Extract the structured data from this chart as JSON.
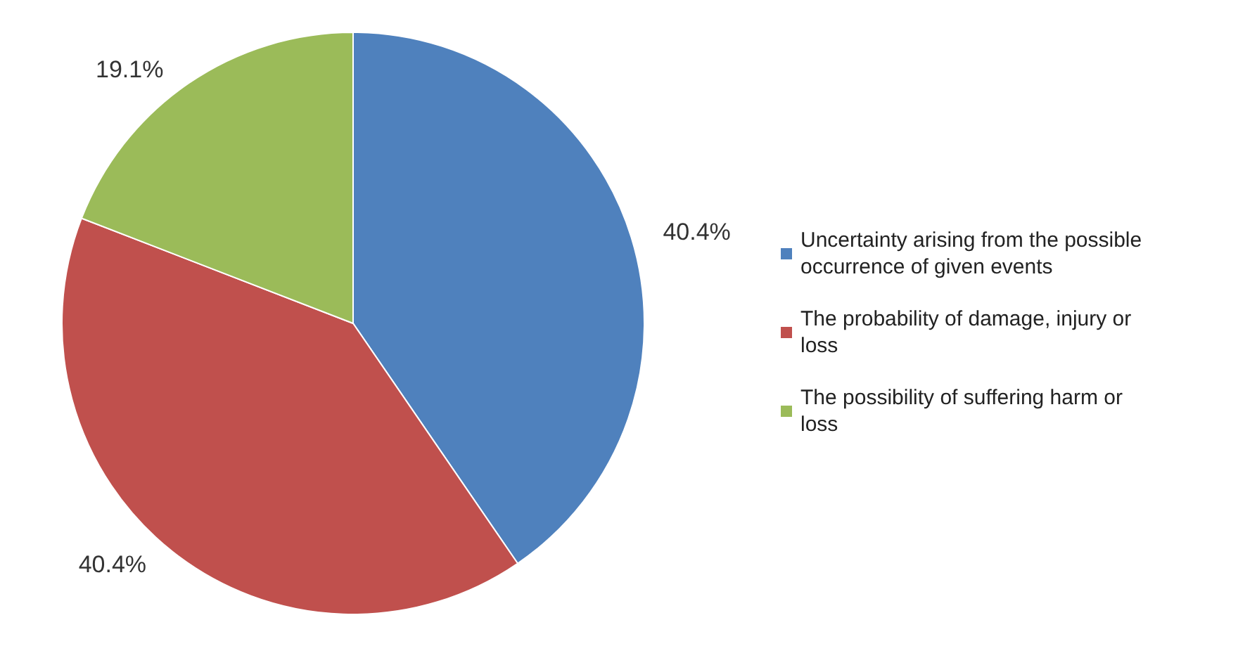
{
  "chart_data": {
    "type": "pie",
    "categories": [
      "Uncertainty arising from the possible occurrence of given events",
      "The probability of damage, injury or loss",
      "The possibility of suffering harm or loss"
    ],
    "values": [
      40.4,
      40.4,
      19.1
    ],
    "value_labels": [
      "40.4%",
      "40.4%",
      "19.1%"
    ],
    "colors": [
      "#4f81bd",
      "#c0504d",
      "#9bbb59"
    ],
    "legend": "right"
  }
}
